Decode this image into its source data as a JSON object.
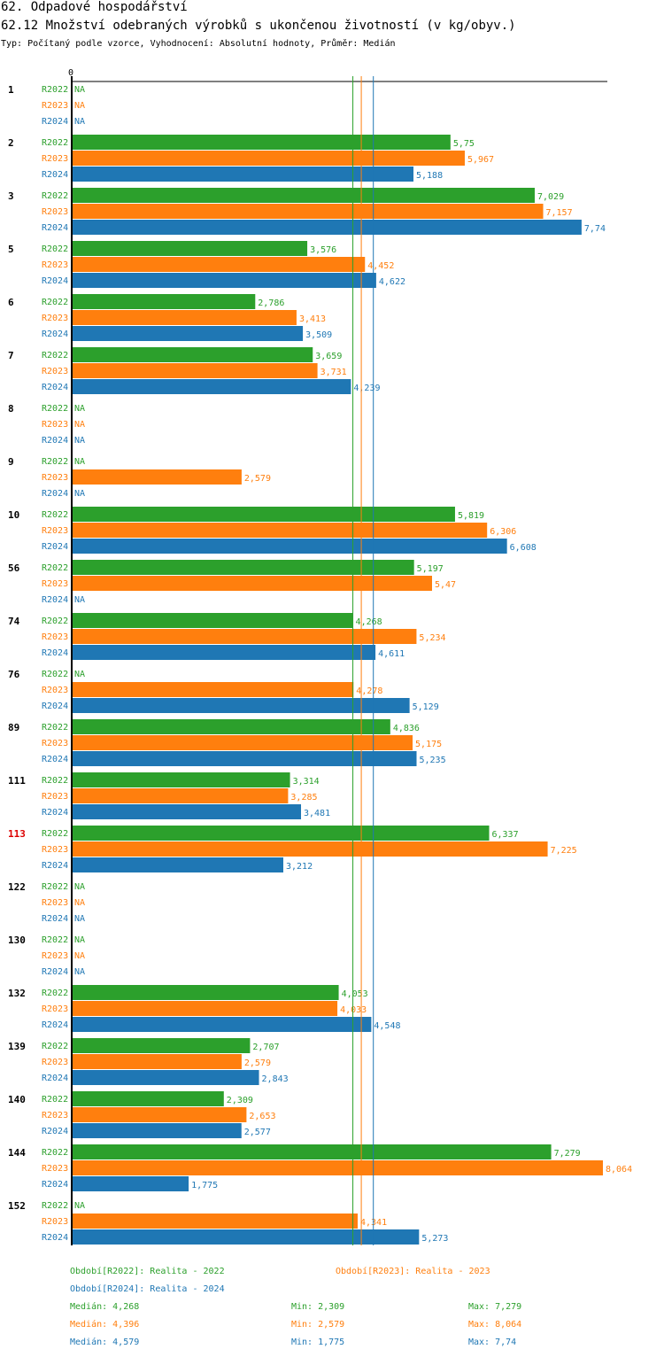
{
  "header": {
    "title": "62. Odpadové hospodářství",
    "subtitle": "62.12 Množství odebraných výrobků s ukončenou životností (v kg/obyv.)",
    "type_line": "Typ: Počítaný podle vzorce, Vyhodnocení: Absolutní hodnoty, Průměr: Medián"
  },
  "colors": {
    "R2022": "#2ca02c",
    "R2023": "#ff7f0e",
    "R2024": "#1f77b4",
    "highlight": "#dd0000"
  },
  "chart_data": {
    "type": "bar",
    "orientation": "horizontal",
    "axis_zero_label": "0",
    "xlim": [
      0,
      8.064
    ],
    "na_label": "NA",
    "highlight_category": "113",
    "series_names": [
      "R2022",
      "R2023",
      "R2024"
    ],
    "categories": [
      "1",
      "2",
      "3",
      "5",
      "6",
      "7",
      "8",
      "9",
      "10",
      "56",
      "74",
      "76",
      "89",
      "111",
      "113",
      "122",
      "130",
      "132",
      "139",
      "140",
      "144",
      "152"
    ],
    "series": [
      {
        "name": "R2022",
        "values": [
          null,
          5.75,
          7.029,
          3.576,
          2.786,
          3.659,
          null,
          null,
          5.819,
          5.197,
          4.268,
          null,
          4.836,
          3.314,
          6.337,
          null,
          null,
          4.053,
          2.707,
          2.309,
          7.279,
          null
        ]
      },
      {
        "name": "R2023",
        "values": [
          null,
          5.967,
          7.157,
          4.452,
          3.413,
          3.731,
          null,
          2.579,
          6.306,
          5.47,
          5.234,
          4.278,
          5.175,
          3.285,
          7.225,
          null,
          null,
          4.033,
          2.579,
          2.653,
          8.064,
          4.341
        ]
      },
      {
        "name": "R2024",
        "values": [
          null,
          5.188,
          7.74,
          4.622,
          3.509,
          4.239,
          null,
          null,
          6.608,
          null,
          4.611,
          5.129,
          5.235,
          3.481,
          3.212,
          null,
          null,
          4.548,
          2.843,
          2.577,
          1.775,
          5.273
        ]
      }
    ],
    "medians": [
      {
        "name": "R2022",
        "value": 4.268
      },
      {
        "name": "R2023",
        "value": 4.396
      },
      {
        "name": "R2024",
        "value": 4.579
      }
    ],
    "legend": [
      {
        "series": "R2022",
        "text": "Období[R2022]: Realita - 2022"
      },
      {
        "series": "R2023",
        "text": "Období[R2023]: Realita - 2023"
      },
      {
        "series": "R2024",
        "text": "Období[R2024]: Realita - 2024"
      }
    ],
    "stats": [
      {
        "series": "R2022",
        "median": "Medián: 4,268",
        "min": "Min: 2,309",
        "max": "Max: 7,279"
      },
      {
        "series": "R2023",
        "median": "Medián: 4,396",
        "min": "Min: 2,579",
        "max": "Max: 8,064"
      },
      {
        "series": "R2024",
        "median": "Medián: 4,579",
        "min": "Min: 1,775",
        "max": "Max: 7,74"
      }
    ]
  }
}
